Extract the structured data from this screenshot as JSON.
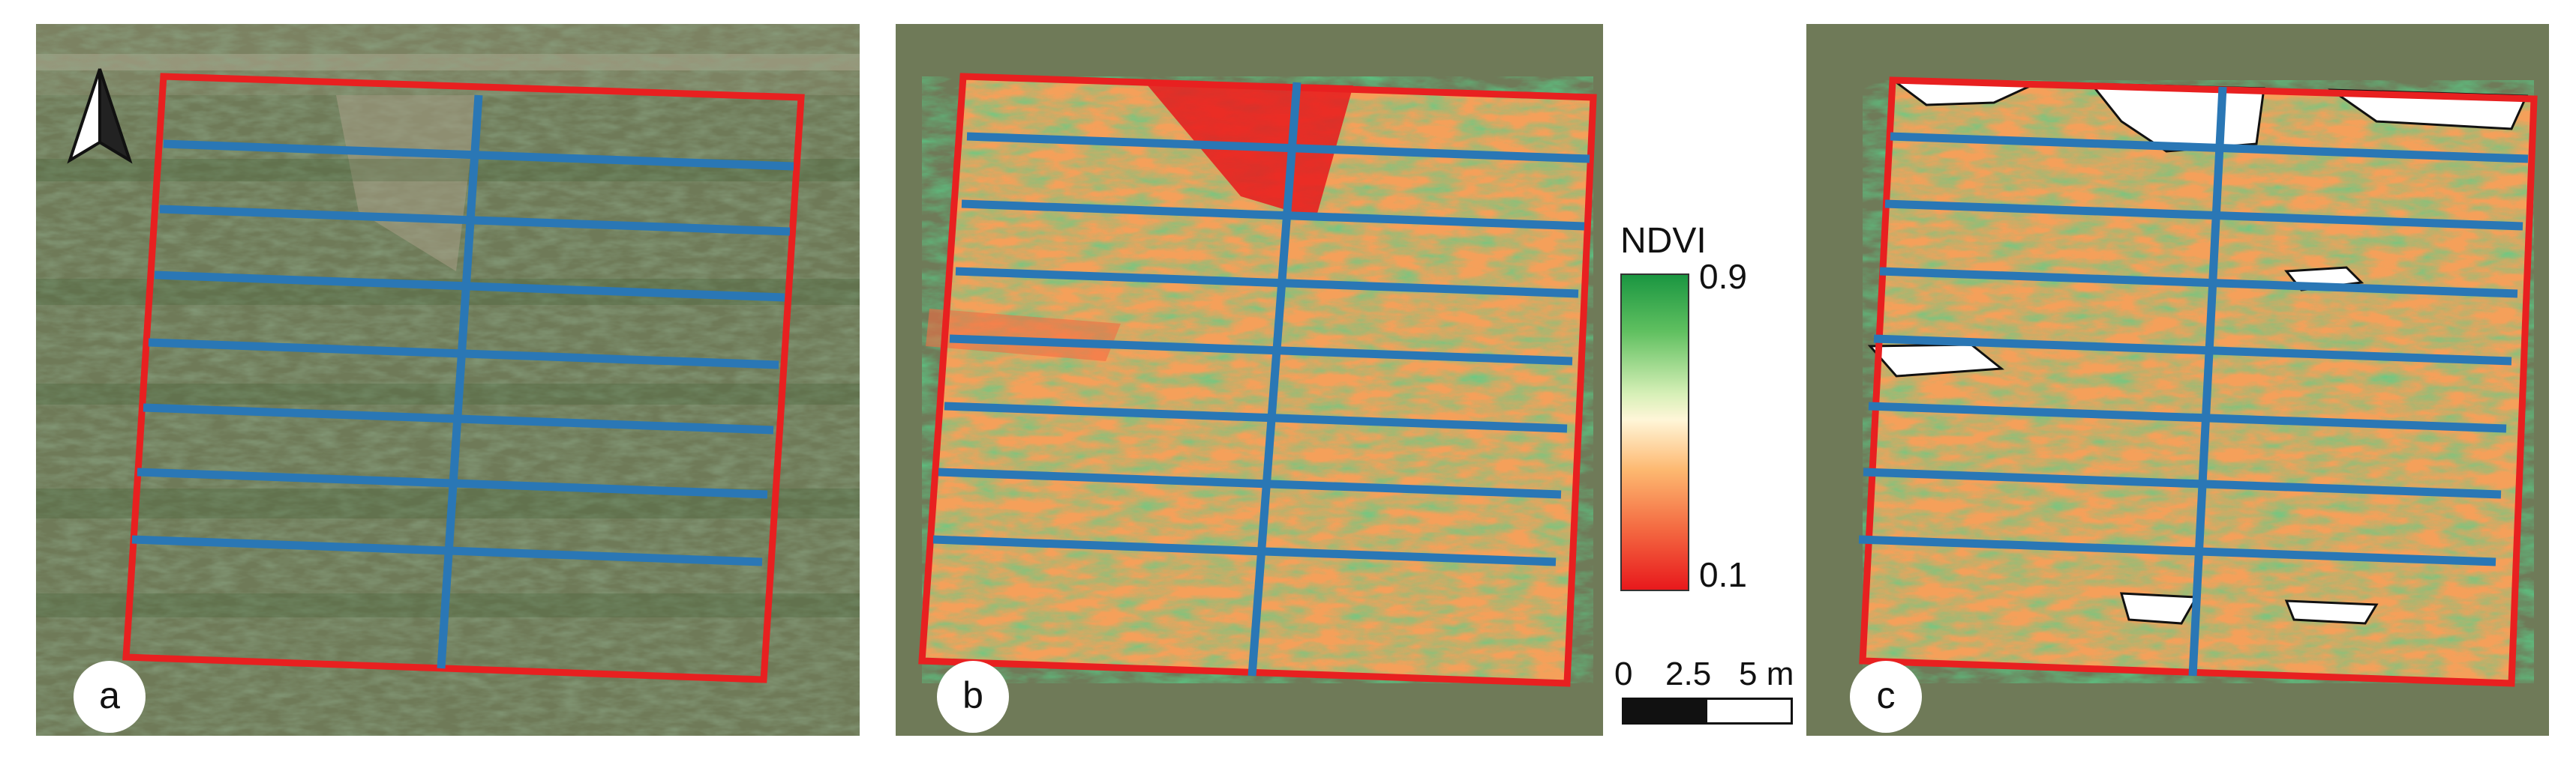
{
  "panels": [
    {
      "label": "a",
      "kind": "rgb"
    },
    {
      "label": "b",
      "kind": "ndvi"
    },
    {
      "label": "c",
      "kind": "ndvi-masked"
    }
  ],
  "legend": {
    "title": "NDVI",
    "max_label": "0.9",
    "min_label": "0.1",
    "colors": {
      "high": "#1a9641",
      "mid": "#fff6d8",
      "low": "#e8191c"
    }
  },
  "scale_bar": {
    "ticks": [
      "0",
      "2.5",
      "5 m"
    ]
  },
  "colors": {
    "plot_boundary": "#e82020",
    "transect": "#2a77b5"
  },
  "icons": {
    "north_arrow": "north-arrow-icon"
  }
}
